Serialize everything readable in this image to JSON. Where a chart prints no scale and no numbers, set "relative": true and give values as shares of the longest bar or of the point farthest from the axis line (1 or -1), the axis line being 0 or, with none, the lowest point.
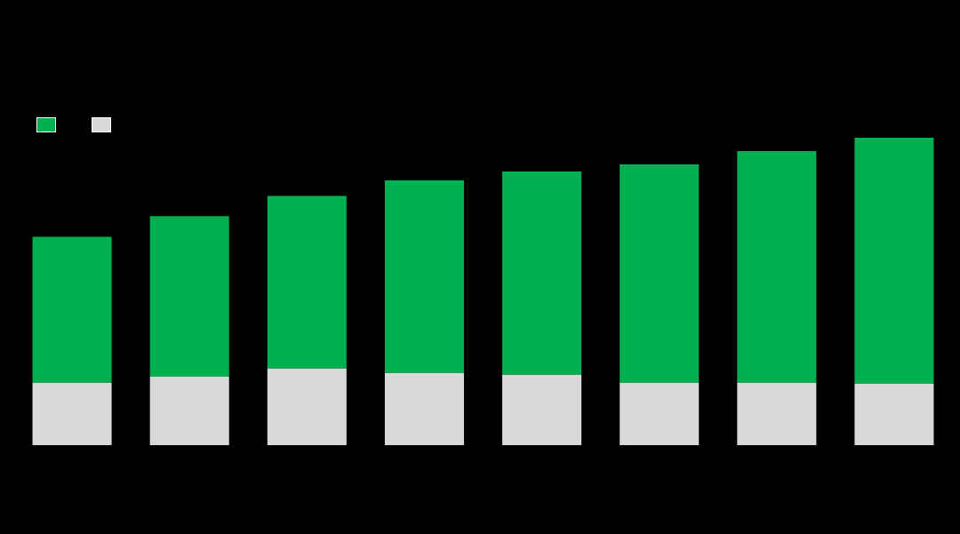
{
  "chart_data": {
    "type": "bar",
    "relative": true,
    "stacked": true,
    "categories": [
      null,
      null,
      null,
      null,
      null,
      null,
      null,
      null
    ],
    "series": [
      {
        "color": "#d9d9d9",
        "values": [
          0.203,
          0.223,
          0.249,
          0.235,
          0.229,
          0.203,
          0.203,
          0.2
        ]
      },
      {
        "color": "#00b050",
        "values": [
          0.475,
          0.522,
          0.562,
          0.626,
          0.661,
          0.71,
          0.754,
          0.8
        ]
      }
    ]
  }
}
